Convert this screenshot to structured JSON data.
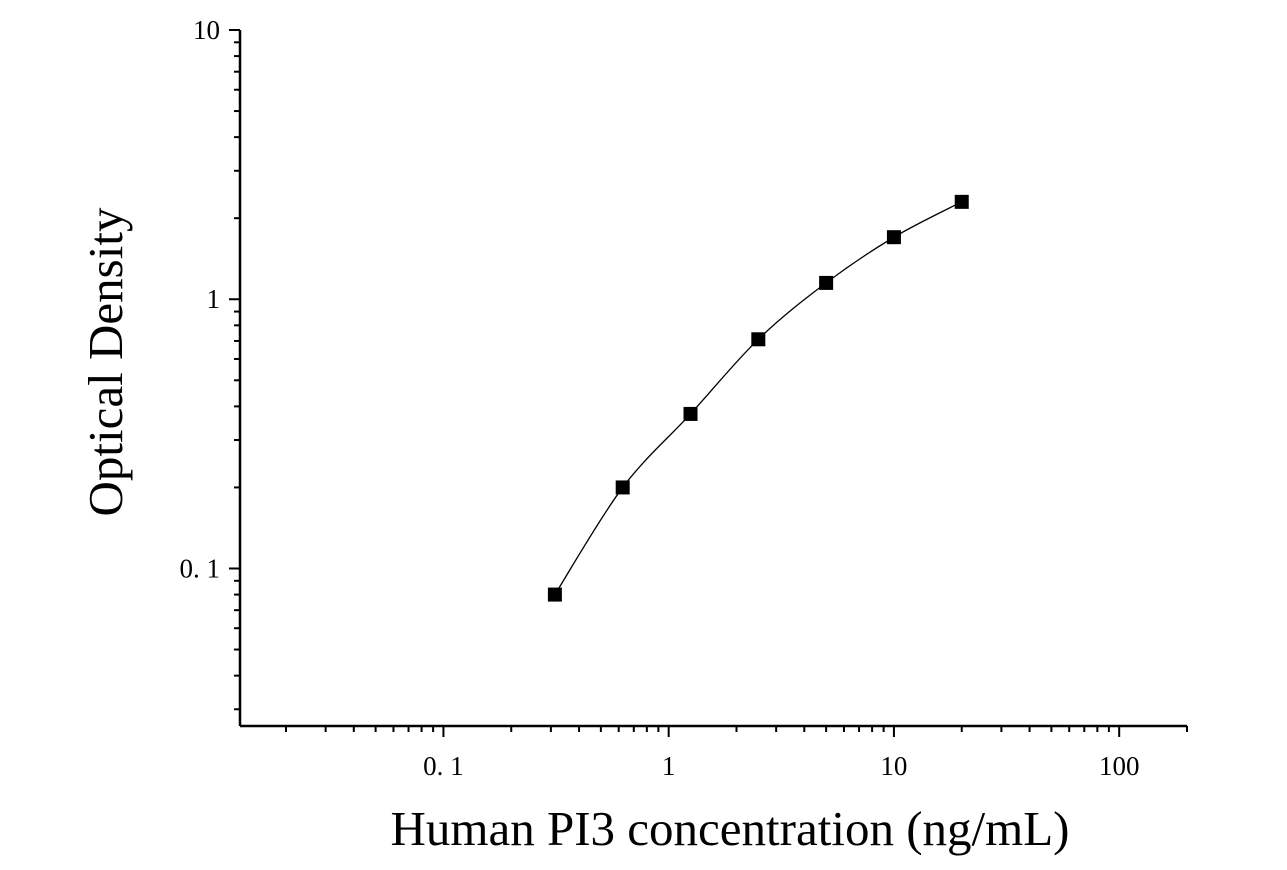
{
  "chart_data": {
    "type": "scatter",
    "xlabel": "Human PI3 concentration (ng/mL)",
    "ylabel": "Optical Density",
    "x_scale": "log",
    "y_scale": "log",
    "xlim": [
      0.0125,
      200
    ],
    "ylim": [
      0.026,
      10
    ],
    "x_ticks": [
      {
        "value": 0.1,
        "label": "0. 1"
      },
      {
        "value": 1,
        "label": "1"
      },
      {
        "value": 10,
        "label": "10"
      },
      {
        "value": 100,
        "label": "100"
      }
    ],
    "y_ticks": [
      {
        "value": 0.1,
        "label": "0. 1"
      },
      {
        "value": 1,
        "label": "1"
      },
      {
        "value": 10,
        "label": "10"
      }
    ],
    "grid": false,
    "series": [
      {
        "marker": "square",
        "color": "#000000",
        "fit": "smooth-curve",
        "x": [
          0.3125,
          0.625,
          1.25,
          2.5,
          5,
          10,
          20
        ],
        "y": [
          0.08,
          0.2,
          0.375,
          0.71,
          1.15,
          1.7,
          2.3
        ]
      }
    ]
  }
}
